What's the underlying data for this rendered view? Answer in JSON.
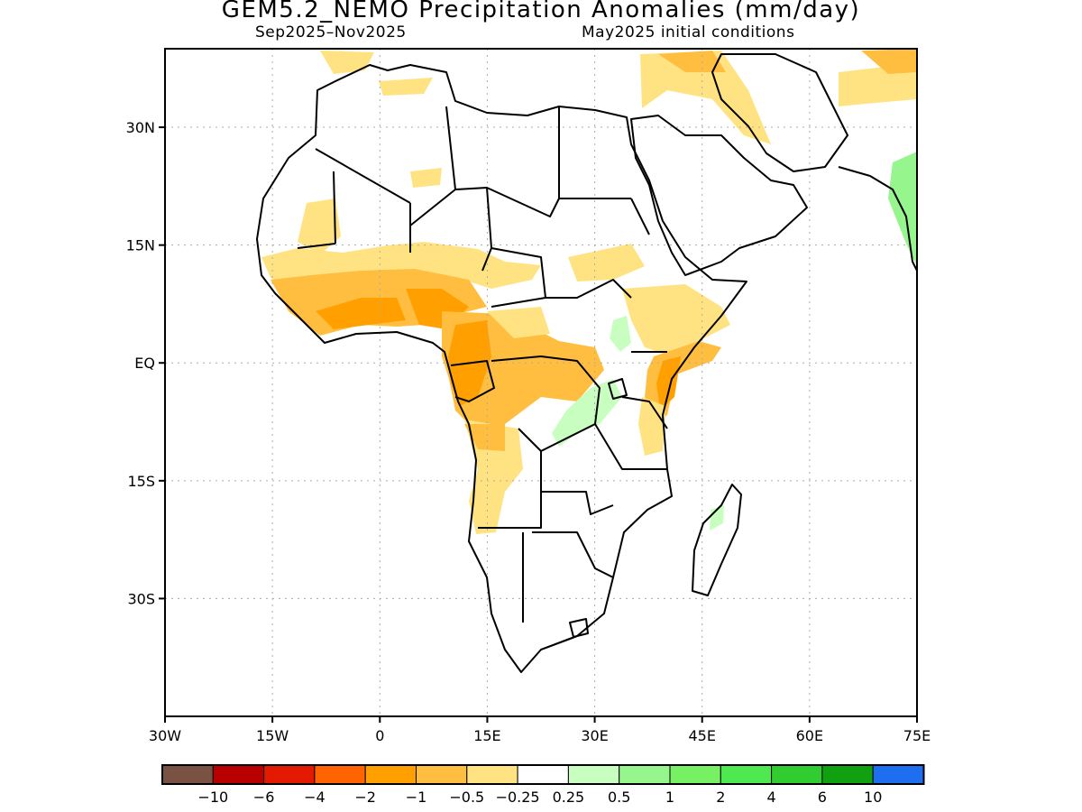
{
  "title": "GEM5.2_NEMO Precipitation Anomalies (mm/day)",
  "subtitle_left": "Sep2025–Nov2025",
  "subtitle_right": "May2025 initial conditions",
  "map": {
    "lon_range": [
      -30,
      75
    ],
    "lat_range": [
      -45,
      40
    ],
    "grid": true,
    "x_ticks": [
      {
        "lon": -30,
        "label": "30W"
      },
      {
        "lon": -15,
        "label": "15W"
      },
      {
        "lon": 0,
        "label": "0"
      },
      {
        "lon": 15,
        "label": "15E"
      },
      {
        "lon": 30,
        "label": "30E"
      },
      {
        "lon": 45,
        "label": "45E"
      },
      {
        "lon": 60,
        "label": "60E"
      },
      {
        "lon": 75,
        "label": "75E"
      }
    ],
    "y_ticks": [
      {
        "lat": 30,
        "label": "30N"
      },
      {
        "lat": 15,
        "label": "15N"
      },
      {
        "lat": 0,
        "label": "EQ"
      },
      {
        "lat": -15,
        "label": "15S"
      },
      {
        "lat": -30,
        "label": "30S"
      }
    ]
  },
  "colorbar": {
    "colors": [
      "#7a5243",
      "#b90000",
      "#e31a00",
      "#ff6400",
      "#ffa000",
      "#ffbe40",
      "#ffe382",
      "#ffffff",
      "#c8ffc0",
      "#96f58c",
      "#78f064",
      "#50e850",
      "#30cc30",
      "#10a010",
      "#1e6ef0"
    ],
    "labels": [
      "−10",
      "−6",
      "−4",
      "−2",
      "−1",
      "−0.5",
      "−0.25",
      "0.25",
      "0.5",
      "1",
      "2",
      "4",
      "6",
      "10"
    ]
  }
}
